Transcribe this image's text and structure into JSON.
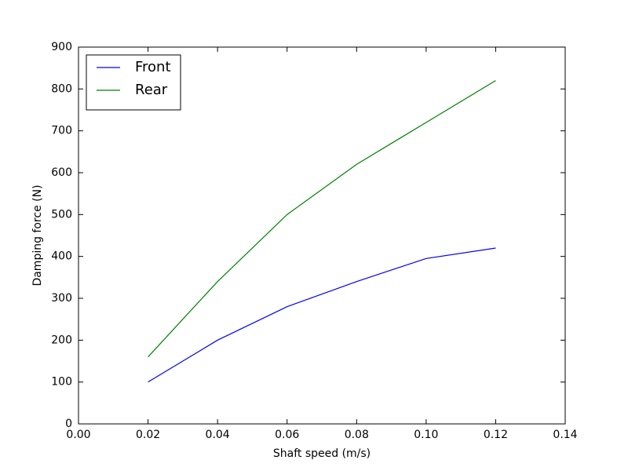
{
  "chart_data": {
    "type": "line",
    "x_label": "Shaft speed (m/s)",
    "y_label": "Damping force (N)",
    "x": [
      0.02,
      0.04,
      0.06,
      0.08,
      0.1,
      0.12
    ],
    "series": [
      {
        "name": "Front",
        "color": "#0000ff",
        "values": [
          100,
          200,
          280,
          340,
          395,
          420
        ]
      },
      {
        "name": "Rear",
        "color": "#008000",
        "values": [
          160,
          340,
          500,
          620,
          720,
          820
        ]
      }
    ],
    "xlim": [
      0,
      0.14
    ],
    "xticks": [
      {
        "value": 0,
        "label": "0.00"
      },
      {
        "value": 0.02,
        "label": "0.02"
      },
      {
        "value": 0.04,
        "label": "0.04"
      },
      {
        "value": 0.06,
        "label": "0.06"
      },
      {
        "value": 0.08,
        "label": "0.08"
      },
      {
        "value": 0.1,
        "label": "0.10"
      },
      {
        "value": 0.12,
        "label": "0.12"
      },
      {
        "value": 0.14,
        "label": "0.14"
      }
    ],
    "ylim": [
      0,
      900
    ],
    "yticks": [
      0,
      100,
      200,
      300,
      400,
      500,
      600,
      700,
      800,
      900
    ],
    "legend": "upper left"
  }
}
